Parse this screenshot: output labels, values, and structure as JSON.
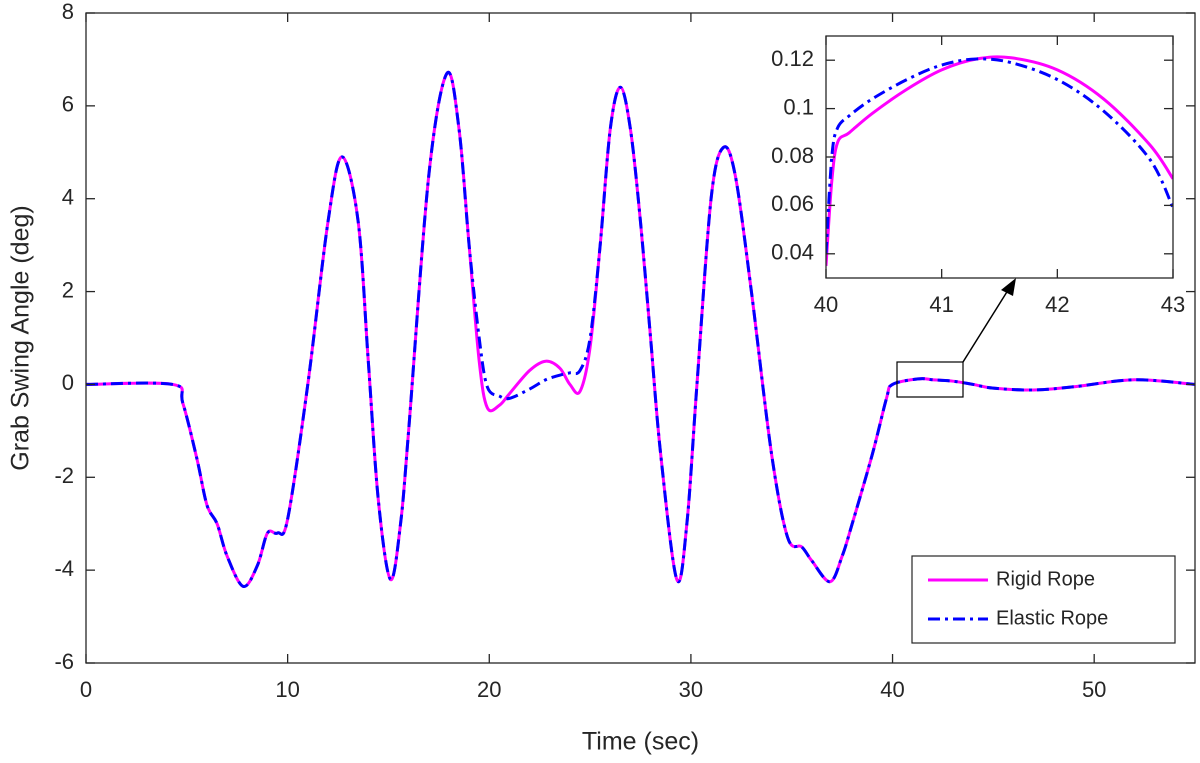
{
  "chart_data": [
    {
      "type": "line",
      "x_label": "Time (sec)",
      "y_label": "Grab Swing Angle (deg)",
      "x": [
        0,
        4.3,
        4.8,
        5.5,
        6,
        6.5,
        7,
        7.8,
        8.5,
        9,
        9.5,
        10,
        11,
        12,
        12.7,
        13.5,
        14,
        14.5,
        15.1,
        15.6,
        16,
        17,
        17.9,
        18.5,
        19,
        19.5,
        19.9,
        20.5,
        21,
        22,
        22.8,
        23.5,
        24,
        24.5,
        25,
        25.5,
        26,
        26.5,
        27,
        27.5,
        28,
        28.5,
        29.3,
        29.8,
        30.3,
        31,
        31.6,
        32.2,
        33,
        34,
        34.8,
        35.5,
        36,
        36.9,
        37.5,
        38,
        39,
        39.7,
        40,
        41.3,
        42,
        43,
        44,
        45,
        47,
        49,
        52,
        55
      ],
      "series": [
        {
          "name": "Rigid Rope",
          "color": "#ff00ff",
          "style": "solid",
          "values": [
            0,
            0,
            -0.4,
            -1.6,
            -2.6,
            -3.0,
            -3.7,
            -4.35,
            -3.9,
            -3.2,
            -3.2,
            -2.9,
            0,
            3.5,
            4.9,
            3.5,
            0.5,
            -2.5,
            -4.2,
            -3,
            -1,
            4.5,
            6.7,
            5.5,
            3,
            0.5,
            -0.5,
            -0.45,
            -0.2,
            0.3,
            0.5,
            0.35,
            0,
            -0.15,
            0.8,
            3,
            5.5,
            6.4,
            5.5,
            3.5,
            1,
            -1.5,
            -4.2,
            -3,
            0,
            4,
            5.1,
            4.5,
            2,
            -1.5,
            -3.3,
            -3.5,
            -3.8,
            -4.25,
            -3.7,
            -3,
            -1.5,
            -0.3,
            0,
            0.12,
            0.1,
            0.07,
            0,
            -0.08,
            -0.12,
            -0.05,
            0.1,
            0
          ]
        },
        {
          "name": "Elastic Rope",
          "color": "#0000ff",
          "style": "dashdot",
          "values": [
            0,
            0,
            -0.4,
            -1.6,
            -2.6,
            -3.0,
            -3.7,
            -4.35,
            -3.9,
            -3.2,
            -3.2,
            -2.9,
            0,
            3.5,
            4.9,
            3.5,
            0.5,
            -2.5,
            -4.2,
            -3,
            -1,
            4.5,
            6.7,
            5.5,
            3,
            1.0,
            -0.05,
            -0.25,
            -0.3,
            -0.1,
            0.1,
            0.2,
            0.25,
            0.3,
            1.0,
            3,
            5.5,
            6.4,
            5.5,
            3.5,
            1,
            -1.5,
            -4.2,
            -3,
            0,
            4,
            5.1,
            4.5,
            2,
            -1.5,
            -3.3,
            -3.5,
            -3.8,
            -4.25,
            -3.7,
            -3,
            -1.5,
            -0.3,
            0,
            0.12,
            0.1,
            0.07,
            0,
            -0.08,
            -0.12,
            -0.05,
            0.1,
            0
          ]
        }
      ],
      "xlim": [
        0,
        55
      ],
      "xticks": [
        0,
        10,
        20,
        30,
        40,
        50
      ],
      "ylim": [
        -6,
        8
      ],
      "yticks": [
        -6,
        -4,
        -2,
        0,
        2,
        4,
        6,
        8
      ],
      "legend": "lower right"
    },
    {
      "type": "line",
      "x": [
        40,
        40.05,
        40.1,
        40.2,
        40.4,
        40.7,
        41,
        41.3,
        41.6,
        42,
        42.4,
        42.8,
        43
      ],
      "series": [
        {
          "name": "Rigid Rope",
          "color": "#ff00ff",
          "style": "solid",
          "values": [
            0.035,
            0.07,
            0.086,
            0.09,
            0.098,
            0.108,
            0.116,
            0.1205,
            0.121,
            0.116,
            0.104,
            0.085,
            0.071
          ]
        },
        {
          "name": "Elastic Rope",
          "color": "#0000ff",
          "style": "dashdot",
          "values": [
            0.04,
            0.08,
            0.092,
            0.097,
            0.104,
            0.112,
            0.118,
            0.1205,
            0.119,
            0.112,
            0.099,
            0.079,
            0.059
          ]
        }
      ],
      "xlim": [
        40,
        43
      ],
      "xticks": [
        40,
        41,
        42,
        43
      ],
      "ylim": [
        0.03,
        0.13
      ],
      "yticks": [
        0.04,
        0.06,
        0.08,
        0.1,
        0.12
      ]
    }
  ]
}
